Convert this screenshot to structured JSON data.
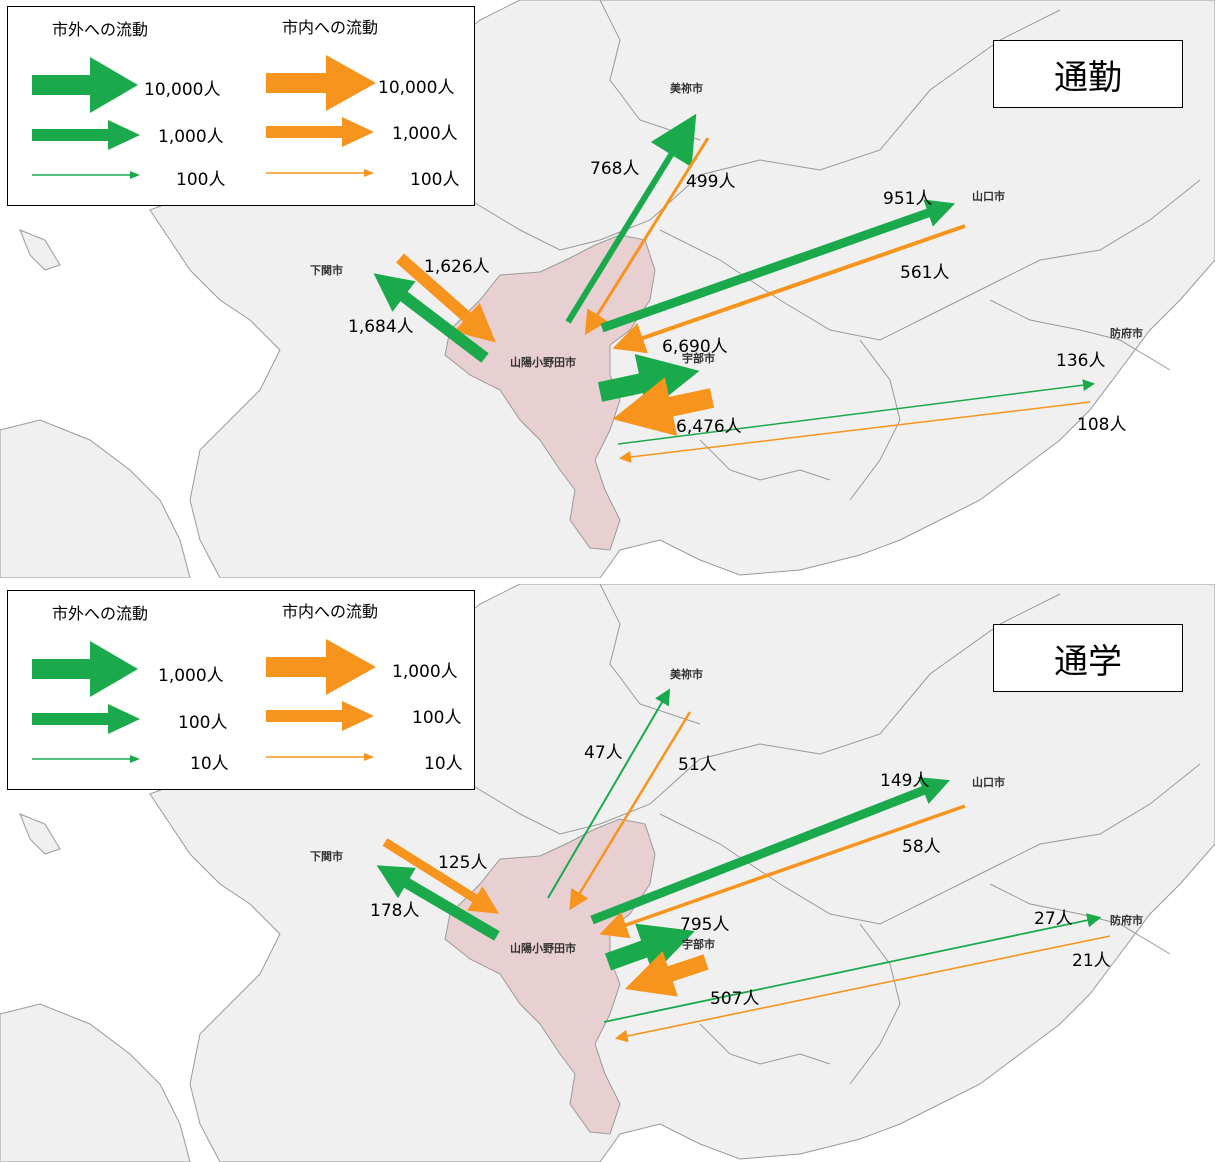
{
  "legend": {
    "outflow_header": "市外への流動",
    "inflow_header": "市内への流動"
  },
  "colors": {
    "outflow": "#1aaa4c",
    "inflow": "#f7941d",
    "city_fill": "#e8cfd2",
    "land": "#f0f0f0",
    "border": "#9a9a9a"
  },
  "cities": {
    "mine": "美祢市",
    "shimonoseki": "下関市",
    "sanyo_onoda": "山陽小野田市",
    "ube": "宇部市",
    "yamaguchi": "山口市",
    "hofu": "防府市"
  },
  "commute": {
    "title": "通勤",
    "legend_scale": [
      "10,000人",
      "1,000人",
      "100人"
    ],
    "flows": {
      "mine_out": "768人",
      "mine_in": "499人",
      "yamaguchi_out": "951人",
      "yamaguchi_in": "561人",
      "shimonoseki_in": "1,626人",
      "shimonoseki_out": "1,684人",
      "ube_out": "6,690人",
      "ube_in": "6,476人",
      "hofu_out": "136人",
      "hofu_in": "108人"
    }
  },
  "school": {
    "title": "通学",
    "legend_scale": [
      "1,000人",
      "100人",
      "10人"
    ],
    "flows": {
      "mine_out": "47人",
      "mine_in": "51人",
      "yamaguchi_out": "149人",
      "yamaguchi_in": "58人",
      "shimonoseki_in": "125人",
      "shimonoseki_out": "178人",
      "ube_out": "795人",
      "ube_in": "507人",
      "hofu_out": "27人",
      "hofu_in": "21人"
    }
  }
}
